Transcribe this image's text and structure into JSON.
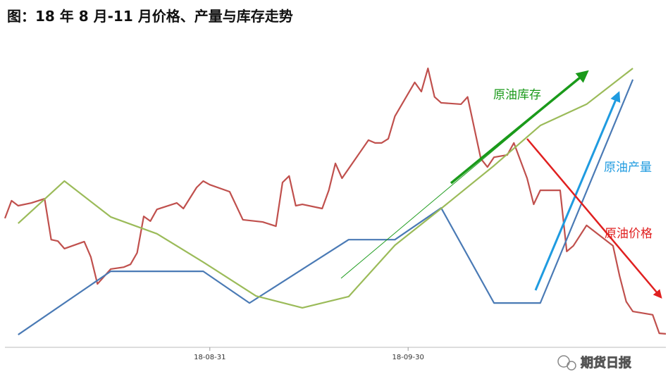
{
  "chart_data": {
    "type": "line",
    "title": "图：18 年 8 月-11 月价格、产量与库存走势",
    "xlim": [
      0,
      100
    ],
    "ylim": [
      0,
      100
    ],
    "xticks": [
      {
        "value": 31,
        "label": "18-08-31"
      },
      {
        "value": 61,
        "label": "18-09-30"
      }
    ],
    "series": [
      {
        "name": "原油价格",
        "color": "#c0504d",
        "x": [
          0,
          1,
          2,
          4,
          6,
          7,
          8,
          9,
          12,
          13,
          14,
          16,
          18,
          19,
          20,
          21,
          22,
          23,
          26,
          27,
          29,
          30,
          31,
          34,
          36,
          39,
          41,
          42,
          43,
          44,
          45,
          48,
          49,
          50,
          51,
          55,
          56,
          57,
          58,
          59,
          62,
          63,
          64,
          65,
          66,
          69,
          70,
          72,
          73,
          74,
          76,
          77,
          79,
          80,
          81,
          84,
          85,
          86,
          88,
          92,
          93,
          94,
          95,
          98,
          99,
          100
        ],
        "values": [
          46.0,
          52.3,
          50.5,
          51.5,
          53.0,
          38.4,
          37.9,
          35.2,
          37.7,
          32.2,
          22.6,
          27.9,
          28.6,
          29.6,
          33.7,
          46.7,
          45.0,
          49.2,
          51.5,
          49.5,
          57.0,
          59.3,
          58.0,
          55.5,
          45.5,
          44.7,
          43.2,
          58.8,
          61.1,
          50.5,
          51.0,
          49.5,
          56.0,
          65.6,
          60.3,
          73.9,
          72.9,
          72.9,
          74.4,
          82.4,
          94.5,
          91.2,
          99.5,
          89.3,
          87.2,
          86.7,
          89.3,
          67.3,
          64.3,
          67.8,
          68.6,
          72.9,
          60.3,
          51.0,
          56.0,
          56.0,
          34.2,
          36.2,
          43.5,
          36.2,
          25.4,
          16.3,
          12.8,
          11.6,
          5.0,
          4.8
        ]
      },
      {
        "name": "原油产量",
        "color": "#4a7ab5",
        "x": [
          2,
          16,
          30,
          37,
          52,
          59,
          66,
          74,
          81,
          95
        ],
        "values": [
          4.5,
          27.1,
          27.1,
          15.8,
          38.4,
          38.4,
          49.7,
          15.8,
          15.8,
          95.5
        ]
      },
      {
        "name": "原油库存",
        "color": "#9bbb59",
        "x": [
          2,
          9,
          16,
          23,
          30,
          38,
          45,
          52,
          59,
          66,
          74,
          81,
          88,
          95
        ],
        "values": [
          44.2,
          59.3,
          46.5,
          40.5,
          30.4,
          18.3,
          14.1,
          18.1,
          36.4,
          49.5,
          64.8,
          79.1,
          86.7,
          99.5
        ]
      }
    ],
    "annotations": [
      "原油库存",
      "原油产量",
      "原油价格"
    ],
    "watermark": "期货日报"
  }
}
